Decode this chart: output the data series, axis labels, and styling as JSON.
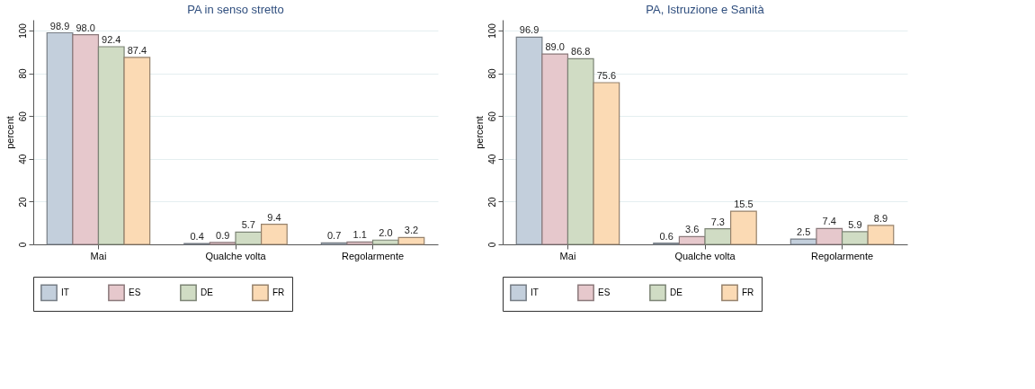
{
  "chart_data": [
    {
      "type": "bar",
      "title": "PA in senso stretto",
      "ylabel": "percent",
      "categories": [
        "Mai",
        "Qualche volta",
        "Regolarmente"
      ],
      "ylim": [
        0,
        105
      ],
      "yticks": [
        0,
        20,
        40,
        60,
        80,
        100
      ],
      "grid": "y",
      "legend": "bottom",
      "series": [
        {
          "name": "IT",
          "color": "#c3cfdc",
          "values": [
            98.9,
            0.4,
            0.7
          ],
          "value_labels": [
            "98.9",
            "0.4",
            "0.7"
          ]
        },
        {
          "name": "ES",
          "color": "#e6c8cc",
          "values": [
            98,
            0.9,
            1.1
          ],
          "value_labels": [
            "98.0",
            "0.9",
            "1.1"
          ]
        },
        {
          "name": "DE",
          "color": "#d0dcc4",
          "values": [
            92.4,
            5.7,
            2
          ],
          "value_labels": [
            "92.4",
            "5.7",
            "2.0"
          ]
        },
        {
          "name": "FR",
          "color": "#fbdab4",
          "values": [
            87.4,
            9.4,
            3.2
          ],
          "value_labels": [
            "87.4",
            "9.4",
            "3.2"
          ]
        }
      ]
    },
    {
      "type": "bar",
      "title": "PA, Istruzione e Sanità",
      "ylabel": "percent",
      "categories": [
        "Mai",
        "Qualche volta",
        "Regolarmente"
      ],
      "ylim": [
        0,
        105
      ],
      "yticks": [
        0,
        20,
        40,
        60,
        80,
        100
      ],
      "grid": "y",
      "legend": "bottom",
      "series": [
        {
          "name": "IT",
          "color": "#c3cfdc",
          "values": [
            96.9,
            0.6,
            2.5
          ],
          "value_labels": [
            "96.9",
            "0.6",
            "2.5"
          ]
        },
        {
          "name": "ES",
          "color": "#e6c8cc",
          "values": [
            89,
            3.6,
            7.4
          ],
          "value_labels": [
            "89.0",
            "3.6",
            "7.4"
          ]
        },
        {
          "name": "DE",
          "color": "#d0dcc4",
          "values": [
            86.8,
            7.3,
            5.9
          ],
          "value_labels": [
            "86.8",
            "7.3",
            "5.9"
          ]
        },
        {
          "name": "FR",
          "color": "#fbdab4",
          "values": [
            75.6,
            15.5,
            8.9
          ],
          "value_labels": [
            "75.6",
            "15.5",
            "8.9"
          ]
        }
      ]
    }
  ]
}
